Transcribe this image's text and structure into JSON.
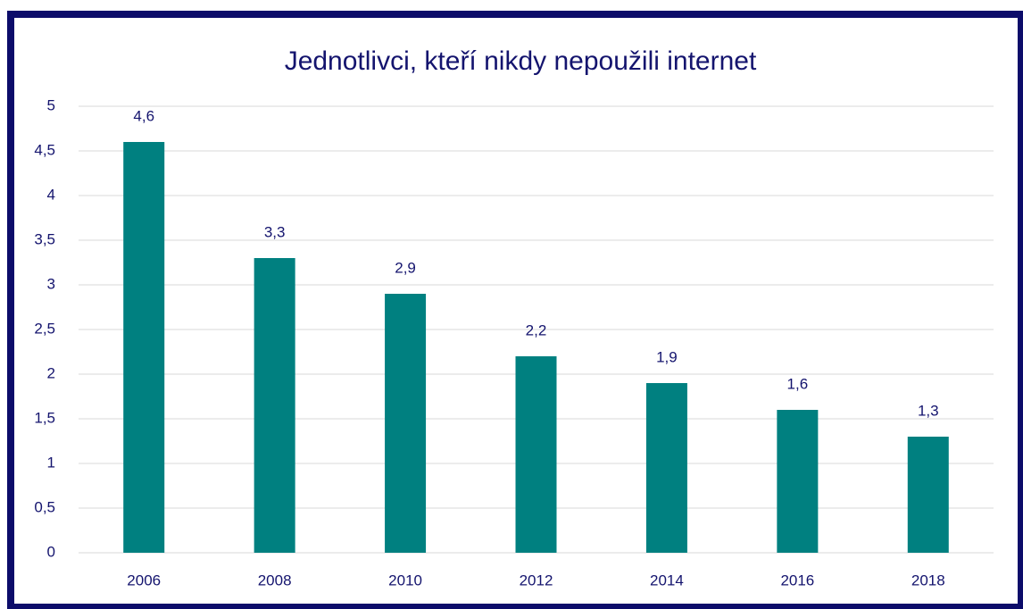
{
  "chart_data": {
    "type": "bar",
    "title": "Jednotlivci, kteří nikdy nepoužili internet",
    "categories": [
      "2006",
      "2008",
      "2010",
      "2012",
      "2014",
      "2016",
      "2018"
    ],
    "values": [
      4.6,
      3.3,
      2.9,
      2.2,
      1.9,
      1.6,
      1.3
    ],
    "value_labels": [
      "4,6",
      "3,3",
      "2,9",
      "2,2",
      "1,9",
      "1,6",
      "1,3"
    ],
    "color": "#008080",
    "ylim": [
      0,
      5
    ],
    "yticks": [
      0,
      {
        "value": 0.5,
        "label": "0,5"
      },
      1,
      {
        "value": 1.5,
        "label": "1,5"
      },
      2,
      {
        "value": 2.5,
        "label": "2,5"
      },
      3,
      {
        "value": 3.5,
        "label": "3,5"
      },
      4,
      {
        "value": 4.5,
        "label": "4,5"
      },
      5
    ],
    "grid": true
  }
}
